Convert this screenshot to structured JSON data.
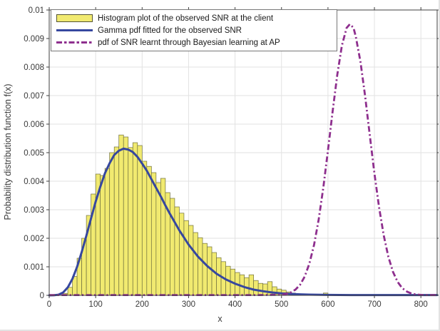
{
  "figure": {
    "ylabel": "Probability distribution function f(x)",
    "xlabel": "x",
    "background": "#ffffff"
  },
  "legend": {
    "entries": [
      {
        "label": "Histogram plot of the observed SNR at the client",
        "swatch": "histogram-box"
      },
      {
        "label": "Gamma pdf fitted for the observed SNR",
        "swatch": "solid-line"
      },
      {
        "label": "pdf of SNR learnt through Bayesian learning at AP",
        "swatch": "dashdot-line"
      }
    ]
  },
  "colors": {
    "histogram_fill": "#f1ea70",
    "histogram_edge": "#6f6f3e",
    "gamma_line": "#36479f",
    "bayesian_line": "#8e2f8e",
    "grid": "#e2e2e2",
    "axis_box": "#3f3f3f",
    "tick_text": "#3a3a3a"
  },
  "chart_data": {
    "type": "bar",
    "subtype": "histogram-with-line-overlays",
    "title": "",
    "xlabel": "x",
    "ylabel": "Probability distribution function f(x)",
    "xlim": [
      0,
      835
    ],
    "ylim": [
      0,
      0.01
    ],
    "grid": true,
    "legend_position": "top-left-inside",
    "xticks": [
      {
        "value": 0,
        "label": "0"
      },
      {
        "value": 100,
        "label": "100"
      },
      {
        "value": 200,
        "label": "200"
      },
      {
        "value": 300,
        "label": "300"
      },
      {
        "value": 400,
        "label": "400"
      },
      {
        "value": 500,
        "label": "500"
      },
      {
        "value": 600,
        "label": "600"
      },
      {
        "value": 700,
        "label": "700"
      },
      {
        "value": 800,
        "label": "800"
      }
    ],
    "yticks": [
      {
        "value": 0,
        "label": "0"
      },
      {
        "value": 0.001,
        "label": "0.001"
      },
      {
        "value": 0.002,
        "label": "0.002"
      },
      {
        "value": 0.003,
        "label": "0.003"
      },
      {
        "value": 0.004,
        "label": "0.004"
      },
      {
        "value": 0.005,
        "label": "0.005"
      },
      {
        "value": 0.006,
        "label": "0.006"
      },
      {
        "value": 0.007,
        "label": "0.007"
      },
      {
        "value": 0.008,
        "label": "0.008"
      },
      {
        "value": 0.009,
        "label": "0.009"
      },
      {
        "value": 0.01,
        "label": "0.01"
      }
    ],
    "histogram": {
      "name": "Histogram plot of the observed SNR at the client",
      "bin_width": 10,
      "bins": [
        [
          30,
          7e-05
        ],
        [
          40,
          0.00028
        ],
        [
          50,
          0.00066
        ],
        [
          60,
          0.0013
        ],
        [
          70,
          0.002
        ],
        [
          80,
          0.0028
        ],
        [
          90,
          0.00355
        ],
        [
          100,
          0.00425
        ],
        [
          110,
          0.0042
        ],
        [
          120,
          0.00445
        ],
        [
          130,
          0.005
        ],
        [
          140,
          0.0052
        ],
        [
          150,
          0.00562
        ],
        [
          160,
          0.00555
        ],
        [
          170,
          0.00518
        ],
        [
          180,
          0.00535
        ],
        [
          190,
          0.00525
        ],
        [
          200,
          0.0047
        ],
        [
          210,
          0.00452
        ],
        [
          220,
          0.0043
        ],
        [
          230,
          0.00395
        ],
        [
          240,
          0.0041
        ],
        [
          250,
          0.0036
        ],
        [
          260,
          0.0034
        ],
        [
          270,
          0.0031
        ],
        [
          280,
          0.00288
        ],
        [
          290,
          0.00262
        ],
        [
          300,
          0.00245
        ],
        [
          310,
          0.0022
        ],
        [
          320,
          0.00202
        ],
        [
          330,
          0.00182
        ],
        [
          340,
          0.0017
        ],
        [
          350,
          0.0015
        ],
        [
          360,
          0.00132
        ],
        [
          370,
          0.00118
        ],
        [
          380,
          0.00102
        ],
        [
          390,
          0.00092
        ],
        [
          400,
          0.0008
        ],
        [
          410,
          0.00072
        ],
        [
          420,
          0.00062
        ],
        [
          430,
          0.00072
        ],
        [
          440,
          0.00052
        ],
        [
          450,
          0.00042
        ],
        [
          460,
          0.0004
        ],
        [
          470,
          0.00048
        ],
        [
          480,
          0.0003
        ],
        [
          490,
          0.00022
        ],
        [
          500,
          0.00018
        ],
        [
          510,
          0.00012
        ],
        [
          520,
          8e-05
        ],
        [
          530,
          5e-05
        ],
        [
          590,
          8e-05
        ]
      ]
    },
    "series": [
      {
        "name": "Gamma pdf fitted for the observed SNR",
        "style": "solid",
        "peak": {
          "x": 160,
          "y": 0.00514
        },
        "points": [
          [
            0,
            0
          ],
          [
            10,
            2e-06
          ],
          [
            20,
            2.2e-05
          ],
          [
            30,
            0.0001
          ],
          [
            40,
            0.00028
          ],
          [
            50,
            0.00058
          ],
          [
            60,
            0.001
          ],
          [
            70,
            0.00152
          ],
          [
            80,
            0.00209
          ],
          [
            90,
            0.00269
          ],
          [
            100,
            0.00328
          ],
          [
            110,
            0.00381
          ],
          [
            120,
            0.00428
          ],
          [
            130,
            0.00463
          ],
          [
            140,
            0.00492
          ],
          [
            150,
            0.00507
          ],
          [
            160,
            0.00514
          ],
          [
            170,
            0.00511
          ],
          [
            180,
            0.00502
          ],
          [
            190,
            0.00485
          ],
          [
            200,
            0.00462
          ],
          [
            210,
            0.00437
          ],
          [
            220,
            0.00407
          ],
          [
            230,
            0.00377
          ],
          [
            240,
            0.00347
          ],
          [
            250,
            0.00315
          ],
          [
            260,
            0.00285
          ],
          [
            280,
            0.00228
          ],
          [
            300,
            0.00178
          ],
          [
            320,
            0.00136
          ],
          [
            340,
            0.00103
          ],
          [
            360,
            0.00076
          ],
          [
            380,
            0.00056
          ],
          [
            400,
            0.00041
          ],
          [
            420,
            0.00029
          ],
          [
            440,
            0.0002
          ],
          [
            460,
            0.000145
          ],
          [
            480,
            0.0001
          ],
          [
            500,
            7e-05
          ],
          [
            520,
            5e-05
          ],
          [
            540,
            3.5e-05
          ],
          [
            560,
            2.5e-05
          ],
          [
            600,
            1.5e-05
          ],
          [
            650,
            1e-05
          ],
          [
            700,
            1e-05
          ],
          [
            750,
            1e-05
          ],
          [
            800,
            1e-05
          ],
          [
            835,
            1e-05
          ]
        ]
      },
      {
        "name": "pdf of SNR learnt through Bayesian learning at AP",
        "style": "dash-dot",
        "peak": {
          "x": 647,
          "y": 0.0095
        },
        "points": [
          [
            0,
            1e-05
          ],
          [
            100,
            1e-05
          ],
          [
            200,
            1e-05
          ],
          [
            300,
            1e-05
          ],
          [
            400,
            1e-05
          ],
          [
            450,
            1e-05
          ],
          [
            480,
            1.5e-05
          ],
          [
            500,
            2e-05
          ],
          [
            510,
            5e-05
          ],
          [
            520,
            0.0001
          ],
          [
            530,
            0.0002
          ],
          [
            540,
            0.00037
          ],
          [
            550,
            0.00066
          ],
          [
            560,
            0.00111
          ],
          [
            570,
            0.00177
          ],
          [
            580,
            0.00266
          ],
          [
            590,
            0.00378
          ],
          [
            600,
            0.00508
          ],
          [
            610,
            0.00644
          ],
          [
            620,
            0.00772
          ],
          [
            630,
            0.00875
          ],
          [
            640,
            0.00937
          ],
          [
            647,
            0.0095
          ],
          [
            655,
            0.00938
          ],
          [
            660,
            0.00906
          ],
          [
            670,
            0.00818
          ],
          [
            680,
            0.00698
          ],
          [
            690,
            0.00562
          ],
          [
            700,
            0.00428
          ],
          [
            710,
            0.00308
          ],
          [
            720,
            0.0021
          ],
          [
            730,
            0.00135
          ],
          [
            740,
            0.00082
          ],
          [
            750,
            0.00047
          ],
          [
            760,
            0.00025
          ],
          [
            770,
            0.00013
          ],
          [
            780,
            6e-05
          ],
          [
            790,
            3e-05
          ],
          [
            800,
            1.5e-05
          ],
          [
            815,
            1e-05
          ],
          [
            835,
            1e-05
          ]
        ]
      }
    ]
  }
}
